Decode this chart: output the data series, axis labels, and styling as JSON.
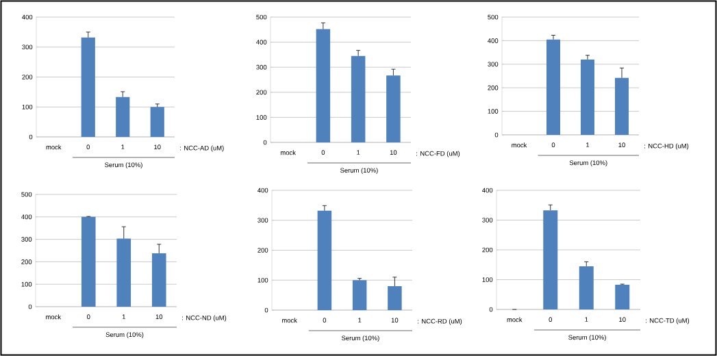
{
  "chart_data": [
    {
      "type": "bar",
      "categories": [
        "mock",
        "0",
        "1",
        "10"
      ],
      "values": [
        0,
        332,
        133,
        100
      ],
      "errors": [
        null,
        18,
        18,
        10
      ],
      "color": "#4f81bd",
      "xlabel": "Serum (10%)",
      "annotations": [
        ": NCC-AD  (uM)"
      ],
      "ylim": [
        0,
        400
      ],
      "yticks": [
        0,
        100,
        200,
        300,
        400
      ],
      "grid": "y"
    },
    {
      "type": "bar",
      "categories": [
        "mock",
        "0",
        "1",
        "10"
      ],
      "values": [
        0,
        452,
        345,
        267
      ],
      "errors": [
        null,
        25,
        22,
        25
      ],
      "color": "#4f81bd",
      "xlabel": "Serum (10%)",
      "annotations": [
        ": NCC-FD  (uM)"
      ],
      "ylim": [
        0,
        500
      ],
      "yticks": [
        0,
        100,
        200,
        300,
        400,
        500
      ],
      "grid": "y"
    },
    {
      "type": "bar",
      "categories": [
        "mock",
        "0",
        "1",
        "10"
      ],
      "values": [
        0,
        405,
        320,
        242
      ],
      "errors": [
        null,
        18,
        18,
        42
      ],
      "color": "#4f81bd",
      "xlabel": "Serum (10%)",
      "annotations": [
        ": NCC-HD  (uM)"
      ],
      "ylim": [
        0,
        500
      ],
      "yticks": [
        0,
        100,
        200,
        300,
        400,
        500
      ],
      "grid": "y"
    },
    {
      "type": "bar",
      "categories": [
        "mock",
        "0",
        "1",
        "10"
      ],
      "values": [
        0,
        400,
        303,
        238
      ],
      "errors": [
        null,
        2,
        53,
        40
      ],
      "color": "#4f81bd",
      "xlabel": "Serum (10%)",
      "annotations": [
        ": NCC-ND  (uM)"
      ],
      "ylim": [
        0,
        500
      ],
      "yticks": [
        0,
        100,
        200,
        300,
        400,
        500
      ],
      "grid": "y"
    },
    {
      "type": "bar",
      "categories": [
        "mock",
        "0",
        "1",
        "10"
      ],
      "values": [
        0,
        332,
        100,
        80
      ],
      "errors": [
        null,
        17,
        6,
        30
      ],
      "color": "#4f81bd",
      "xlabel": "Serum (10%)",
      "annotations": [
        ": NCC-RD  (uM)"
      ],
      "ylim": [
        0,
        400
      ],
      "yticks": [
        0,
        100,
        200,
        300,
        400
      ],
      "grid": "y"
    },
    {
      "type": "bar",
      "categories": [
        "mock",
        "0",
        "1",
        "10"
      ],
      "values": [
        0,
        333,
        145,
        83
      ],
      "errors": [
        0,
        18,
        15,
        2
      ],
      "color": "#4f81bd",
      "xlabel": "Serum (10%)",
      "annotations": [
        ": NCC-TD  (uM)"
      ],
      "ylim": [
        0,
        400
      ],
      "yticks": [
        0,
        100,
        200,
        300,
        400
      ],
      "grid": "y"
    }
  ]
}
